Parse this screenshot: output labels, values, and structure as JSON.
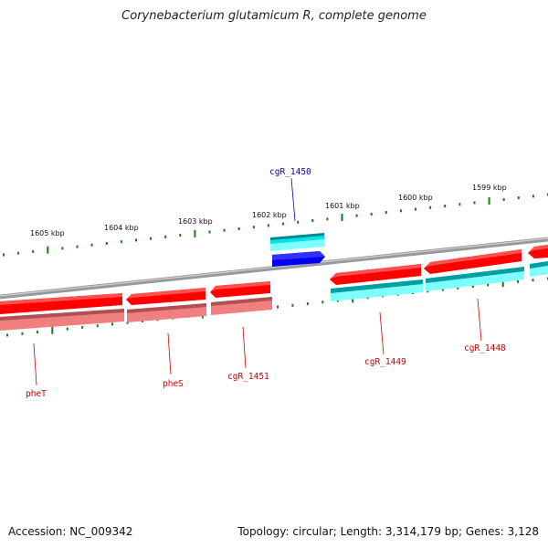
{
  "title": "Corynebacterium glutamicum R, complete genome",
  "footer": {
    "accession": "Accession: NC_009342",
    "topology": "Topology: circular; Length: 3,314,179 bp; Genes: 3,128"
  },
  "colors": {
    "backbone": "#888888",
    "tick": "#1a7a1a",
    "gene_forward": "#ff0000",
    "gene_forward_light": "#f08080",
    "gene_reverse": "#00d0d0",
    "gene_reverse_dark": "#0000ee",
    "label_red": "#cc0000",
    "label_blue": "#0000cc"
  },
  "ticks": [
    {
      "label": "1605 kbp"
    },
    {
      "label": "1604 kbp"
    },
    {
      "label": "1603 kbp"
    },
    {
      "label": "1602 kbp"
    },
    {
      "label": "1601 kbp"
    },
    {
      "label": "1600 kbp"
    },
    {
      "label": "1599 kbp"
    }
  ],
  "genes": [
    {
      "name": "pheT",
      "color": "red"
    },
    {
      "name": "pheS",
      "color": "red"
    },
    {
      "name": "cgR_1451",
      "color": "red"
    },
    {
      "name": "cgR_1450",
      "color": "blue"
    },
    {
      "name": "cgR_1449",
      "color": "red"
    },
    {
      "name": "cgR_1448",
      "color": "red"
    }
  ]
}
